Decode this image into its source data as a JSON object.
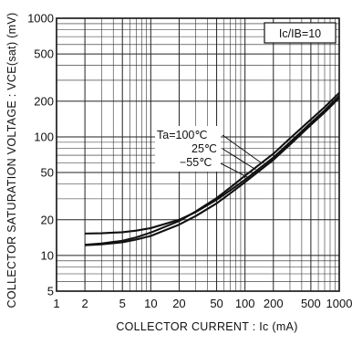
{
  "chart_data": {
    "type": "line",
    "xlabel": "COLLECTOR  CURRENT : Ic  (mA)",
    "ylabel": "COLLECTOR  SATURATION  VOLTAGE : VCE(sat)  (mV)",
    "x_scale": "log",
    "y_scale": "log",
    "xlim": [
      1,
      1000
    ],
    "ylim": [
      5,
      1000
    ],
    "x_ticks": [
      {
        "value": 1,
        "label": "1"
      },
      {
        "value": 2,
        "label": "2"
      },
      {
        "value": 5,
        "label": "5"
      },
      {
        "value": 10,
        "label": "10"
      },
      {
        "value": 20,
        "label": "20"
      },
      {
        "value": 50,
        "label": "50"
      },
      {
        "value": 100,
        "label": "100"
      },
      {
        "value": 200,
        "label": "200"
      },
      {
        "value": 500,
        "label": "500"
      },
      {
        "value": 1000,
        "label": "1000"
      }
    ],
    "y_ticks": [
      {
        "value": 5,
        "label": "5"
      },
      {
        "value": 10,
        "label": "10"
      },
      {
        "value": 20,
        "label": "20"
      },
      {
        "value": 50,
        "label": "50"
      },
      {
        "value": 100,
        "label": "100"
      },
      {
        "value": 200,
        "label": "200"
      },
      {
        "value": 500,
        "label": "500"
      },
      {
        "value": 1000,
        "label": "1000"
      }
    ],
    "grid": true,
    "condition_label": "Ic/IB=10",
    "series": [
      {
        "name": "Ta=100℃",
        "x": [
          2,
          3,
          5,
          7,
          10,
          20,
          30,
          50,
          70,
          100,
          200,
          300,
          500,
          700,
          1000
        ],
        "y": [
          12.3,
          12.6,
          13.3,
          14.2,
          15.6,
          19.5,
          23.5,
          30.5,
          37.5,
          47,
          72,
          97,
          140,
          178,
          235
        ]
      },
      {
        "name": "25℃",
        "x": [
          2,
          3,
          5,
          7,
          10,
          20,
          30,
          50,
          70,
          100,
          200,
          300,
          500,
          700,
          1000
        ],
        "y": [
          12.2,
          12.4,
          12.9,
          13.6,
          14.6,
          18.2,
          21.5,
          27.5,
          33.5,
          41.5,
          64,
          86,
          126,
          161,
          213
        ]
      },
      {
        "name": "−55℃",
        "x": [
          2,
          3,
          5,
          7,
          10,
          20,
          30,
          50,
          70,
          100,
          200,
          300,
          500,
          700,
          1000
        ],
        "y": [
          15.3,
          15.4,
          15.7,
          16.2,
          17,
          20,
          23.2,
          29.5,
          35.5,
          43.5,
          67,
          90,
          131,
          167,
          222
        ]
      }
    ],
    "annotations": {
      "t100": "Ta=100℃",
      "t25": "25℃",
      "tm55": "−55℃"
    }
  }
}
